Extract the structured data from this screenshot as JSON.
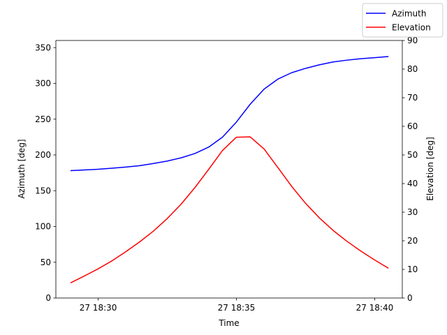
{
  "chart_data": {
    "type": "line",
    "xlabel": "Time",
    "ylabel_left": "Azimuth [deg]",
    "ylabel_right": "Elevation [deg]",
    "x_minutes_after": "27 18:28",
    "x_ticks": [
      {
        "label": "27 18:30",
        "minutes": 2
      },
      {
        "label": "27 18:35",
        "minutes": 7
      },
      {
        "label": "27 18:40",
        "minutes": 12
      }
    ],
    "xlim_minutes": [
      0.47,
      13.0
    ],
    "ylim_left": [
      0,
      360
    ],
    "yticks_left": [
      0,
      50,
      100,
      150,
      200,
      250,
      300,
      350
    ],
    "ylim_right": [
      0,
      90
    ],
    "yticks_right": [
      0,
      10,
      20,
      30,
      40,
      50,
      60,
      70,
      80,
      90
    ],
    "legend": {
      "position": "top-right",
      "entries": [
        "Azimuth",
        "Elevation"
      ]
    },
    "series": [
      {
        "name": "Azimuth",
        "axis": "left",
        "color": "#0000ff",
        "x": [
          1.0,
          1.5,
          2.0,
          2.5,
          3.0,
          3.5,
          4.0,
          4.5,
          5.0,
          5.5,
          6.0,
          6.5,
          7.0,
          7.5,
          8.0,
          8.5,
          9.0,
          9.5,
          10.0,
          10.5,
          11.0,
          11.5,
          12.0,
          12.5
        ],
        "y": [
          178,
          179,
          180,
          181.5,
          183,
          185,
          188,
          191.5,
          196,
          202,
          211,
          225,
          246,
          271,
          292,
          306,
          315,
          321,
          326,
          330,
          332.5,
          334.5,
          336,
          337.5
        ]
      },
      {
        "name": "Elevation",
        "axis": "right",
        "color": "#ff0000",
        "x": [
          1.0,
          1.5,
          2.0,
          2.5,
          3.0,
          3.5,
          4.0,
          4.5,
          5.0,
          5.5,
          6.0,
          6.5,
          7.0,
          7.5,
          8.0,
          8.5,
          9.0,
          9.5,
          10.0,
          10.5,
          11.0,
          11.5,
          12.0,
          12.5
        ],
        "y": [
          5.3,
          7.7,
          10.2,
          13.0,
          16.2,
          19.6,
          23.4,
          27.8,
          32.8,
          38.6,
          45.0,
          51.6,
          56.2,
          56.3,
          52.1,
          45.6,
          39.0,
          33.1,
          28.0,
          23.6,
          19.8,
          16.4,
          13.3,
          10.4
        ]
      }
    ]
  }
}
